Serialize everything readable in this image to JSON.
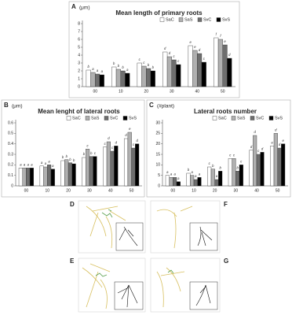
{
  "chart_data": [
    {
      "type": "bar",
      "panel": "A",
      "title": "Mean length of primary roots",
      "y_label": "(μm)",
      "categories": [
        "00",
        "10",
        "20",
        "30",
        "40",
        "50"
      ],
      "ylim": [
        0,
        8
      ],
      "yticks": [
        0,
        1,
        2,
        3,
        4,
        5,
        6,
        7,
        8
      ],
      "legend": "top-right",
      "series": [
        {
          "name": "SaC",
          "color": "#ffffff",
          "values": [
            2.1,
            2.5,
            3.0,
            4.4,
            5.2,
            6.2
          ],
          "letters": [
            "b",
            "b",
            "c",
            "d",
            "e",
            "f"
          ]
        },
        {
          "name": "SaS",
          "color": "#b0b0b0",
          "values": [
            1.8,
            2.2,
            2.6,
            3.8,
            4.6,
            6.0
          ],
          "letters": [
            "a",
            "b",
            "c",
            "d",
            "e",
            "f"
          ]
        },
        {
          "name": "SvC",
          "color": "#6e6e6e",
          "values": [
            1.6,
            2.0,
            2.3,
            3.4,
            4.2,
            5.3
          ],
          "letters": [
            "a",
            "b",
            "b",
            "c",
            "d",
            "e"
          ]
        },
        {
          "name": "SvS",
          "color": "#000000",
          "values": [
            1.5,
            1.7,
            2.0,
            2.8,
            3.1,
            3.6
          ],
          "letters": [
            "a",
            "a",
            "b",
            "c",
            "c",
            "d"
          ]
        }
      ]
    },
    {
      "type": "bar",
      "panel": "B",
      "title": "Mean lenght of lateral roots",
      "y_label": "(μm)",
      "categories": [
        "00",
        "10",
        "20",
        "30",
        "40",
        "50"
      ],
      "ylim": [
        0,
        0.6
      ],
      "yticks": [
        0,
        0.1,
        0.2,
        0.3,
        0.4,
        0.5,
        0.6
      ],
      "legend": "top-right",
      "series": [
        {
          "name": "SaC",
          "color": "#ffffff",
          "values": [
            0.17,
            0.19,
            0.24,
            0.27,
            0.37,
            0.45
          ],
          "letters": [
            "a",
            "a",
            "b",
            "b",
            "c",
            "d"
          ]
        },
        {
          "name": "SaS",
          "color": "#b0b0b0",
          "values": [
            0.17,
            0.18,
            0.25,
            0.35,
            0.42,
            0.51
          ],
          "letters": [
            "a",
            "a",
            "b",
            "c",
            "d",
            "e"
          ]
        },
        {
          "name": "SvC",
          "color": "#6e6e6e",
          "values": [
            0.17,
            0.2,
            0.22,
            0.28,
            0.33,
            0.36
          ],
          "letters": [
            "a",
            "a",
            "b",
            "b",
            "c",
            "c"
          ]
        },
        {
          "name": "SvS",
          "color": "#000000",
          "values": [
            0.17,
            0.16,
            0.21,
            0.28,
            0.38,
            0.4
          ],
          "letters": [
            "a",
            "a",
            "b",
            "c",
            "d",
            "d"
          ]
        }
      ]
    },
    {
      "type": "bar",
      "panel": "C",
      "title": "Lateral roots number",
      "y_label": "(#plant)",
      "categories": [
        "00",
        "10",
        "20",
        "30",
        "40",
        "50"
      ],
      "ylim": [
        0,
        30
      ],
      "yticks": [
        0,
        5,
        10,
        15,
        20,
        25,
        30
      ],
      "legend": "top-right",
      "series": [
        {
          "name": "SaC",
          "color": "#ffffff",
          "values": [
            5,
            6,
            9,
            13,
            17,
            19
          ],
          "letters": [
            "a",
            "b",
            "c",
            "c",
            "d",
            "e"
          ]
        },
        {
          "name": "SaS",
          "color": "#b0b0b0",
          "values": [
            4,
            5,
            8,
            13,
            24,
            25
          ],
          "letters": [
            "a",
            "a",
            "b",
            "c",
            "d",
            "d"
          ]
        },
        {
          "name": "SvC",
          "color": "#6e6e6e",
          "values": [
            4,
            3,
            3,
            7,
            15,
            18
          ],
          "letters": [
            "a",
            "a",
            "a",
            "b",
            "c",
            "d"
          ]
        },
        {
          "name": "SvS",
          "color": "#000000",
          "values": [
            2,
            4,
            7,
            10,
            16,
            20
          ],
          "letters": [
            "a",
            "a",
            "b",
            "c",
            "d",
            "e"
          ]
        }
      ]
    }
  ],
  "panels": [
    "D",
    "E",
    "F",
    "G"
  ]
}
